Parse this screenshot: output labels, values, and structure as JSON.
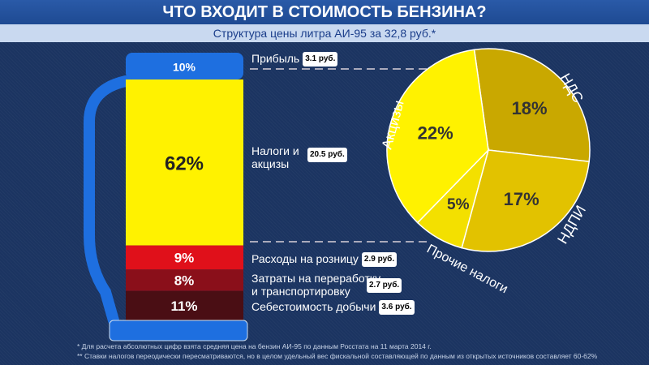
{
  "title": "ЧТО ВХОДИТ В СТОИМОСТЬ БЕНЗИНА?",
  "subtitle": "Структура цены литра АИ-95 за 32,8 руб.*",
  "chart_data": [
    {
      "type": "bar",
      "stacked": true,
      "categories": [
        "Прибыль",
        "Налоги и акцизы",
        "Расходы на розницу",
        "Затраты на переработку и транспортировку",
        "Себестоимость добычи"
      ],
      "values": [
        10,
        62,
        9,
        8,
        11
      ],
      "value_labels": [
        "10%",
        "62%",
        "9%",
        "8%",
        "11%"
      ],
      "amounts": [
        "3.1 руб.",
        "20.5 руб.",
        "2.9 руб.",
        "2.7 руб.",
        "3.6 руб."
      ],
      "colors": [
        "#1e6fe0",
        "#fff200",
        "#e0101a",
        "#8a0f1a",
        "#4a0e14"
      ]
    },
    {
      "type": "pie",
      "labels": [
        "НДС",
        "НДПИ",
        "Прочие налоги",
        "Акцизы"
      ],
      "values": [
        18,
        17,
        5,
        22
      ],
      "value_labels": [
        "18%",
        "17%",
        "5%",
        "22%"
      ],
      "colors": [
        "#c9a800",
        "#e2c200",
        "#f3e000",
        "#fff200"
      ]
    }
  ],
  "footnotes": [
    "* Для расчета абсолютных цифр взята средняя цена на бензин АИ-95 по данным Росстата на 11 марта 2014 г.",
    "** Ставки налогов переодически пересматриваются, но в целом удельный вес фискальной составляющей по данным из открытых источников составляет 60-62%"
  ]
}
